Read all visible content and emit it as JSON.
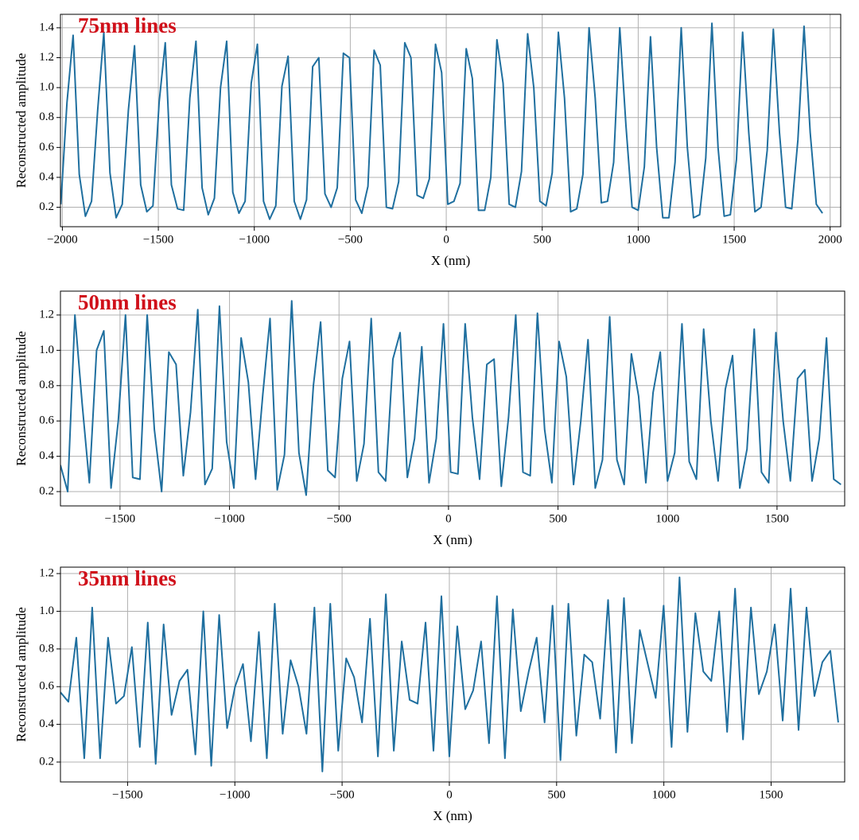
{
  "chart_data": [
    {
      "type": "line",
      "title": "75nm lines",
      "xlabel": "X (nm)",
      "ylabel": "Reconstructed amplitude",
      "color": "#1f6f9f",
      "grid": true,
      "xlim": [
        -2010,
        2055
      ],
      "ylim": [
        0.07,
        1.49
      ],
      "xticks": [
        {
          "value": -2000,
          "label": "−2000"
        },
        {
          "value": -1500,
          "label": "−1500"
        },
        {
          "value": -1000,
          "label": "−1000"
        },
        {
          "value": -500,
          "label": "−500"
        },
        0,
        500,
        1000,
        1500,
        2000
      ],
      "yticks": [
        0.2,
        0.4,
        0.6,
        0.8,
        {
          "value": 1,
          "label": "1.0"
        },
        1.2,
        1.4
      ],
      "x": [
        -2008,
        -1976,
        -1944,
        -1912,
        -1880,
        -1848,
        -1816,
        -1784,
        -1752,
        -1720,
        -1688,
        -1656,
        -1624,
        -1592,
        -1560,
        -1528,
        -1496,
        -1464,
        -1432,
        -1400,
        -1368,
        -1336,
        -1304,
        -1272,
        -1240,
        -1208,
        -1176,
        -1144,
        -1112,
        -1080,
        -1048,
        -1016,
        -984,
        -952,
        -920,
        -888,
        -856,
        -824,
        -792,
        -760,
        -728,
        -696,
        -664,
        -632,
        -600,
        -568,
        -536,
        -504,
        -472,
        -440,
        -408,
        -376,
        -344,
        -312,
        -280,
        -248,
        -216,
        -184,
        -152,
        -120,
        -88,
        -56,
        -24,
        8,
        40,
        72,
        104,
        136,
        168,
        200,
        232,
        264,
        296,
        328,
        360,
        392,
        424,
        456,
        488,
        520,
        552,
        584,
        616,
        648,
        680,
        712,
        744,
        776,
        808,
        840,
        872,
        904,
        936,
        968,
        1000,
        1032,
        1064,
        1096,
        1128,
        1160,
        1192,
        1224,
        1256,
        1288,
        1320,
        1352,
        1384,
        1416,
        1448,
        1480,
        1512,
        1544,
        1576,
        1608,
        1640,
        1672,
        1704,
        1736,
        1768,
        1800,
        1832,
        1864,
        1896,
        1928,
        1960
      ],
      "values": [
        0.22,
        0.9,
        1.35,
        0.42,
        0.14,
        0.24,
        0.85,
        1.37,
        0.43,
        0.13,
        0.22,
        0.85,
        1.28,
        0.35,
        0.17,
        0.21,
        0.9,
        1.3,
        0.35,
        0.19,
        0.18,
        0.93,
        1.31,
        0.33,
        0.15,
        0.26,
        1.0,
        1.31,
        0.3,
        0.16,
        0.24,
        1.03,
        1.29,
        0.24,
        0.12,
        0.21,
        1.01,
        1.21,
        0.24,
        0.12,
        0.25,
        1.14,
        1.2,
        0.29,
        0.2,
        0.33,
        1.23,
        1.2,
        0.25,
        0.16,
        0.34,
        1.25,
        1.15,
        0.2,
        0.19,
        0.37,
        1.3,
        1.2,
        0.28,
        0.26,
        0.39,
        1.29,
        1.1,
        0.22,
        0.24,
        0.36,
        1.26,
        1.06,
        0.18,
        0.18,
        0.4,
        1.32,
        1.03,
        0.22,
        0.2,
        0.44,
        1.36,
        1.0,
        0.24,
        0.21,
        0.43,
        1.37,
        0.93,
        0.17,
        0.19,
        0.42,
        1.4,
        0.93,
        0.23,
        0.24,
        0.5,
        1.4,
        0.75,
        0.2,
        0.18,
        0.47,
        1.34,
        0.6,
        0.13,
        0.13,
        0.5,
        1.4,
        0.6,
        0.13,
        0.15,
        0.53,
        1.43,
        0.6,
        0.14,
        0.15,
        0.52,
        1.37,
        0.7,
        0.17,
        0.2,
        0.58,
        1.39,
        0.7,
        0.2,
        0.19,
        0.65,
        1.41,
        0.7,
        0.22,
        0.16
      ]
    },
    {
      "type": "line",
      "title": "50nm lines",
      "xlabel": "X (nm)",
      "ylabel": "Reconstructed amplitude",
      "color": "#1f6f9f",
      "grid": true,
      "xlim": [
        -1772,
        1809
      ],
      "ylim": [
        0.119,
        1.335
      ],
      "xticks": [
        {
          "value": -1500,
          "label": "−1500"
        },
        {
          "value": -1000,
          "label": "−1000"
        },
        {
          "value": -500,
          "label": "−500"
        },
        0,
        500,
        1000,
        1500
      ],
      "yticks": [
        0.2,
        0.4,
        0.6,
        0.8,
        {
          "value": 1,
          "label": "1.0"
        },
        1.2
      ],
      "x": [
        -1772,
        -1739,
        -1706,
        -1673,
        -1640,
        -1607,
        -1574,
        -1541,
        -1508,
        -1475,
        -1442,
        -1409,
        -1376,
        -1343,
        -1310,
        -1277,
        -1244,
        -1211,
        -1178,
        -1145,
        -1112,
        -1079,
        -1046,
        -1013,
        -980,
        -947,
        -914,
        -881,
        -848,
        -815,
        -782,
        -749,
        -716,
        -683,
        -650,
        -617,
        -584,
        -551,
        -518,
        -485,
        -452,
        -419,
        -386,
        -353,
        -320,
        -287,
        -254,
        -221,
        -188,
        -155,
        -122,
        -89,
        -56,
        -23,
        10,
        43,
        76,
        109,
        142,
        175,
        208,
        241,
        274,
        307,
        340,
        373,
        406,
        439,
        472,
        505,
        538,
        571,
        604,
        637,
        670,
        703,
        736,
        769,
        802,
        835,
        868,
        901,
        934,
        967,
        1000,
        1033,
        1066,
        1099,
        1132,
        1165,
        1198,
        1231,
        1264,
        1297,
        1330,
        1363,
        1396,
        1429,
        1462,
        1495,
        1528,
        1561,
        1594,
        1627,
        1660,
        1693,
        1726,
        1759,
        1792
      ],
      "values": [
        0.35,
        0.2,
        1.2,
        0.7,
        0.25,
        1.0,
        1.11,
        0.22,
        0.6,
        1.2,
        0.28,
        0.27,
        1.2,
        0.55,
        0.2,
        0.99,
        0.92,
        0.29,
        0.65,
        1.23,
        0.24,
        0.33,
        1.25,
        0.48,
        0.22,
        1.07,
        0.82,
        0.27,
        0.75,
        1.18,
        0.21,
        0.41,
        1.28,
        0.42,
        0.18,
        0.8,
        1.16,
        0.32,
        0.28,
        0.84,
        1.05,
        0.26,
        0.47,
        1.18,
        0.31,
        0.26,
        0.95,
        1.1,
        0.28,
        0.5,
        1.02,
        0.25,
        0.5,
        1.15,
        0.31,
        0.3,
        1.15,
        0.62,
        0.27,
        0.92,
        0.95,
        0.23,
        0.62,
        1.2,
        0.31,
        0.29,
        1.21,
        0.55,
        0.25,
        1.05,
        0.85,
        0.24,
        0.6,
        1.06,
        0.22,
        0.38,
        1.19,
        0.38,
        0.24,
        0.98,
        0.74,
        0.25,
        0.76,
        0.99,
        0.26,
        0.42,
        1.15,
        0.37,
        0.27,
        1.12,
        0.6,
        0.26,
        0.78,
        0.97,
        0.22,
        0.44,
        1.12,
        0.31,
        0.25,
        1.1,
        0.6,
        0.26,
        0.84,
        0.89,
        0.26,
        0.5,
        1.07,
        0.27,
        0.24
      ]
    },
    {
      "type": "line",
      "title": "35nm lines",
      "xlabel": "X (nm)",
      "ylabel": "Reconstructed amplitude",
      "color": "#1f6f9f",
      "grid": true,
      "xlim": [
        -1813,
        1843
      ],
      "ylim": [
        0.0945,
        1.234
      ],
      "xticks": [
        {
          "value": -1500,
          "label": "−1500"
        },
        {
          "value": -1000,
          "label": "−1000"
        },
        {
          "value": -500,
          "label": "−500"
        },
        0,
        500,
        1000,
        1500
      ],
      "yticks": [
        0.2,
        0.4,
        0.6,
        0.8,
        {
          "value": 1,
          "label": "1.0"
        },
        1.2
      ],
      "x": [
        -1813,
        -1776,
        -1739,
        -1702,
        -1665,
        -1628,
        -1591,
        -1554,
        -1517,
        -1480,
        -1443,
        -1406,
        -1369,
        -1332,
        -1295,
        -1258,
        -1221,
        -1184,
        -1147,
        -1110,
        -1073,
        -1036,
        -999,
        -962,
        -925,
        -888,
        -851,
        -814,
        -777,
        -740,
        -703,
        -666,
        -629,
        -592,
        -555,
        -518,
        -481,
        -444,
        -407,
        -370,
        -333,
        -296,
        -259,
        -222,
        -185,
        -148,
        -111,
        -74,
        -37,
        0,
        37,
        74,
        111,
        148,
        185,
        222,
        259,
        296,
        333,
        370,
        407,
        444,
        481,
        518,
        555,
        592,
        629,
        666,
        703,
        740,
        777,
        814,
        851,
        888,
        925,
        962,
        999,
        1036,
        1073,
        1110,
        1147,
        1184,
        1221,
        1258,
        1295,
        1332,
        1369,
        1406,
        1443,
        1480,
        1517,
        1554,
        1591,
        1628,
        1665,
        1702,
        1739,
        1776,
        1813
      ],
      "values": [
        0.57,
        0.52,
        0.86,
        0.22,
        1.02,
        0.22,
        0.86,
        0.51,
        0.55,
        0.81,
        0.28,
        0.94,
        0.19,
        0.93,
        0.45,
        0.63,
        0.69,
        0.24,
        1.0,
        0.18,
        0.98,
        0.38,
        0.6,
        0.72,
        0.31,
        0.89,
        0.22,
        1.04,
        0.35,
        0.74,
        0.6,
        0.35,
        1.02,
        0.15,
        1.04,
        0.26,
        0.75,
        0.65,
        0.41,
        0.96,
        0.23,
        1.09,
        0.26,
        0.84,
        0.53,
        0.51,
        0.94,
        0.26,
        1.08,
        0.23,
        0.92,
        0.48,
        0.58,
        0.84,
        0.3,
        1.08,
        0.22,
        1.01,
        0.47,
        0.68,
        0.86,
        0.41,
        1.03,
        0.21,
        1.04,
        0.34,
        0.77,
        0.73,
        0.43,
        1.06,
        0.25,
        1.07,
        0.3,
        0.9,
        0.72,
        0.54,
        1.03,
        0.28,
        1.18,
        0.36,
        0.99,
        0.68,
        0.63,
        1.0,
        0.36,
        1.12,
        0.32,
        1.02,
        0.56,
        0.68,
        0.93,
        0.42,
        1.12,
        0.37,
        1.02,
        0.55,
        0.73,
        0.79,
        0.41
      ]
    }
  ]
}
